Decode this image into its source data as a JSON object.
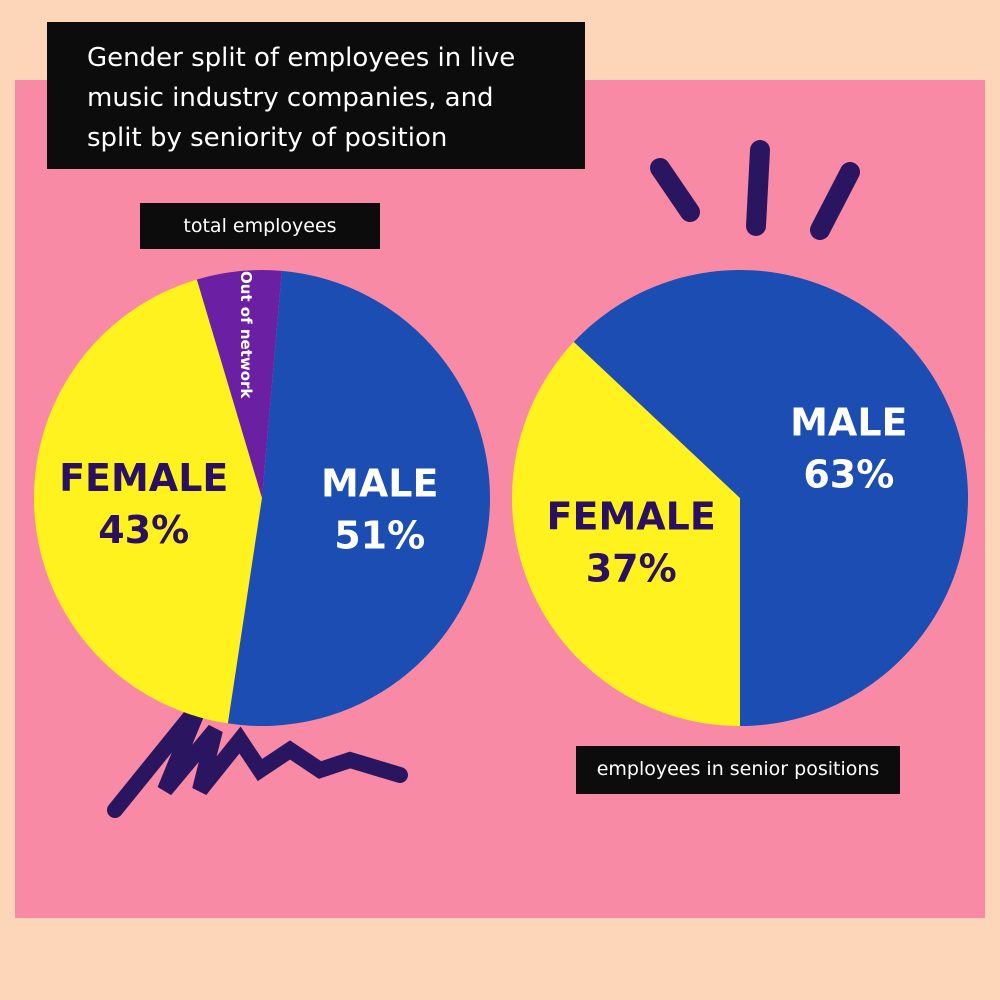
{
  "title": "Gender split of employees in live music industry companies, and split by seniority of position",
  "chart_data": [
    {
      "type": "pie",
      "title": "total employees",
      "categories": [
        "FEMALE",
        "Out of network",
        "MALE"
      ],
      "values": [
        43,
        6,
        51
      ],
      "value_labels": [
        "43%",
        null,
        "51%"
      ],
      "colors": [
        "#fff21e",
        "#6b1fa3",
        "#1b4db3"
      ]
    },
    {
      "type": "pie",
      "title": "employees in senior positions",
      "categories": [
        "FEMALE",
        "MALE"
      ],
      "values": [
        37,
        63
      ],
      "value_labels": [
        "37%",
        "63%"
      ],
      "colors": [
        "#fff21e",
        "#1b4db3"
      ]
    }
  ]
}
